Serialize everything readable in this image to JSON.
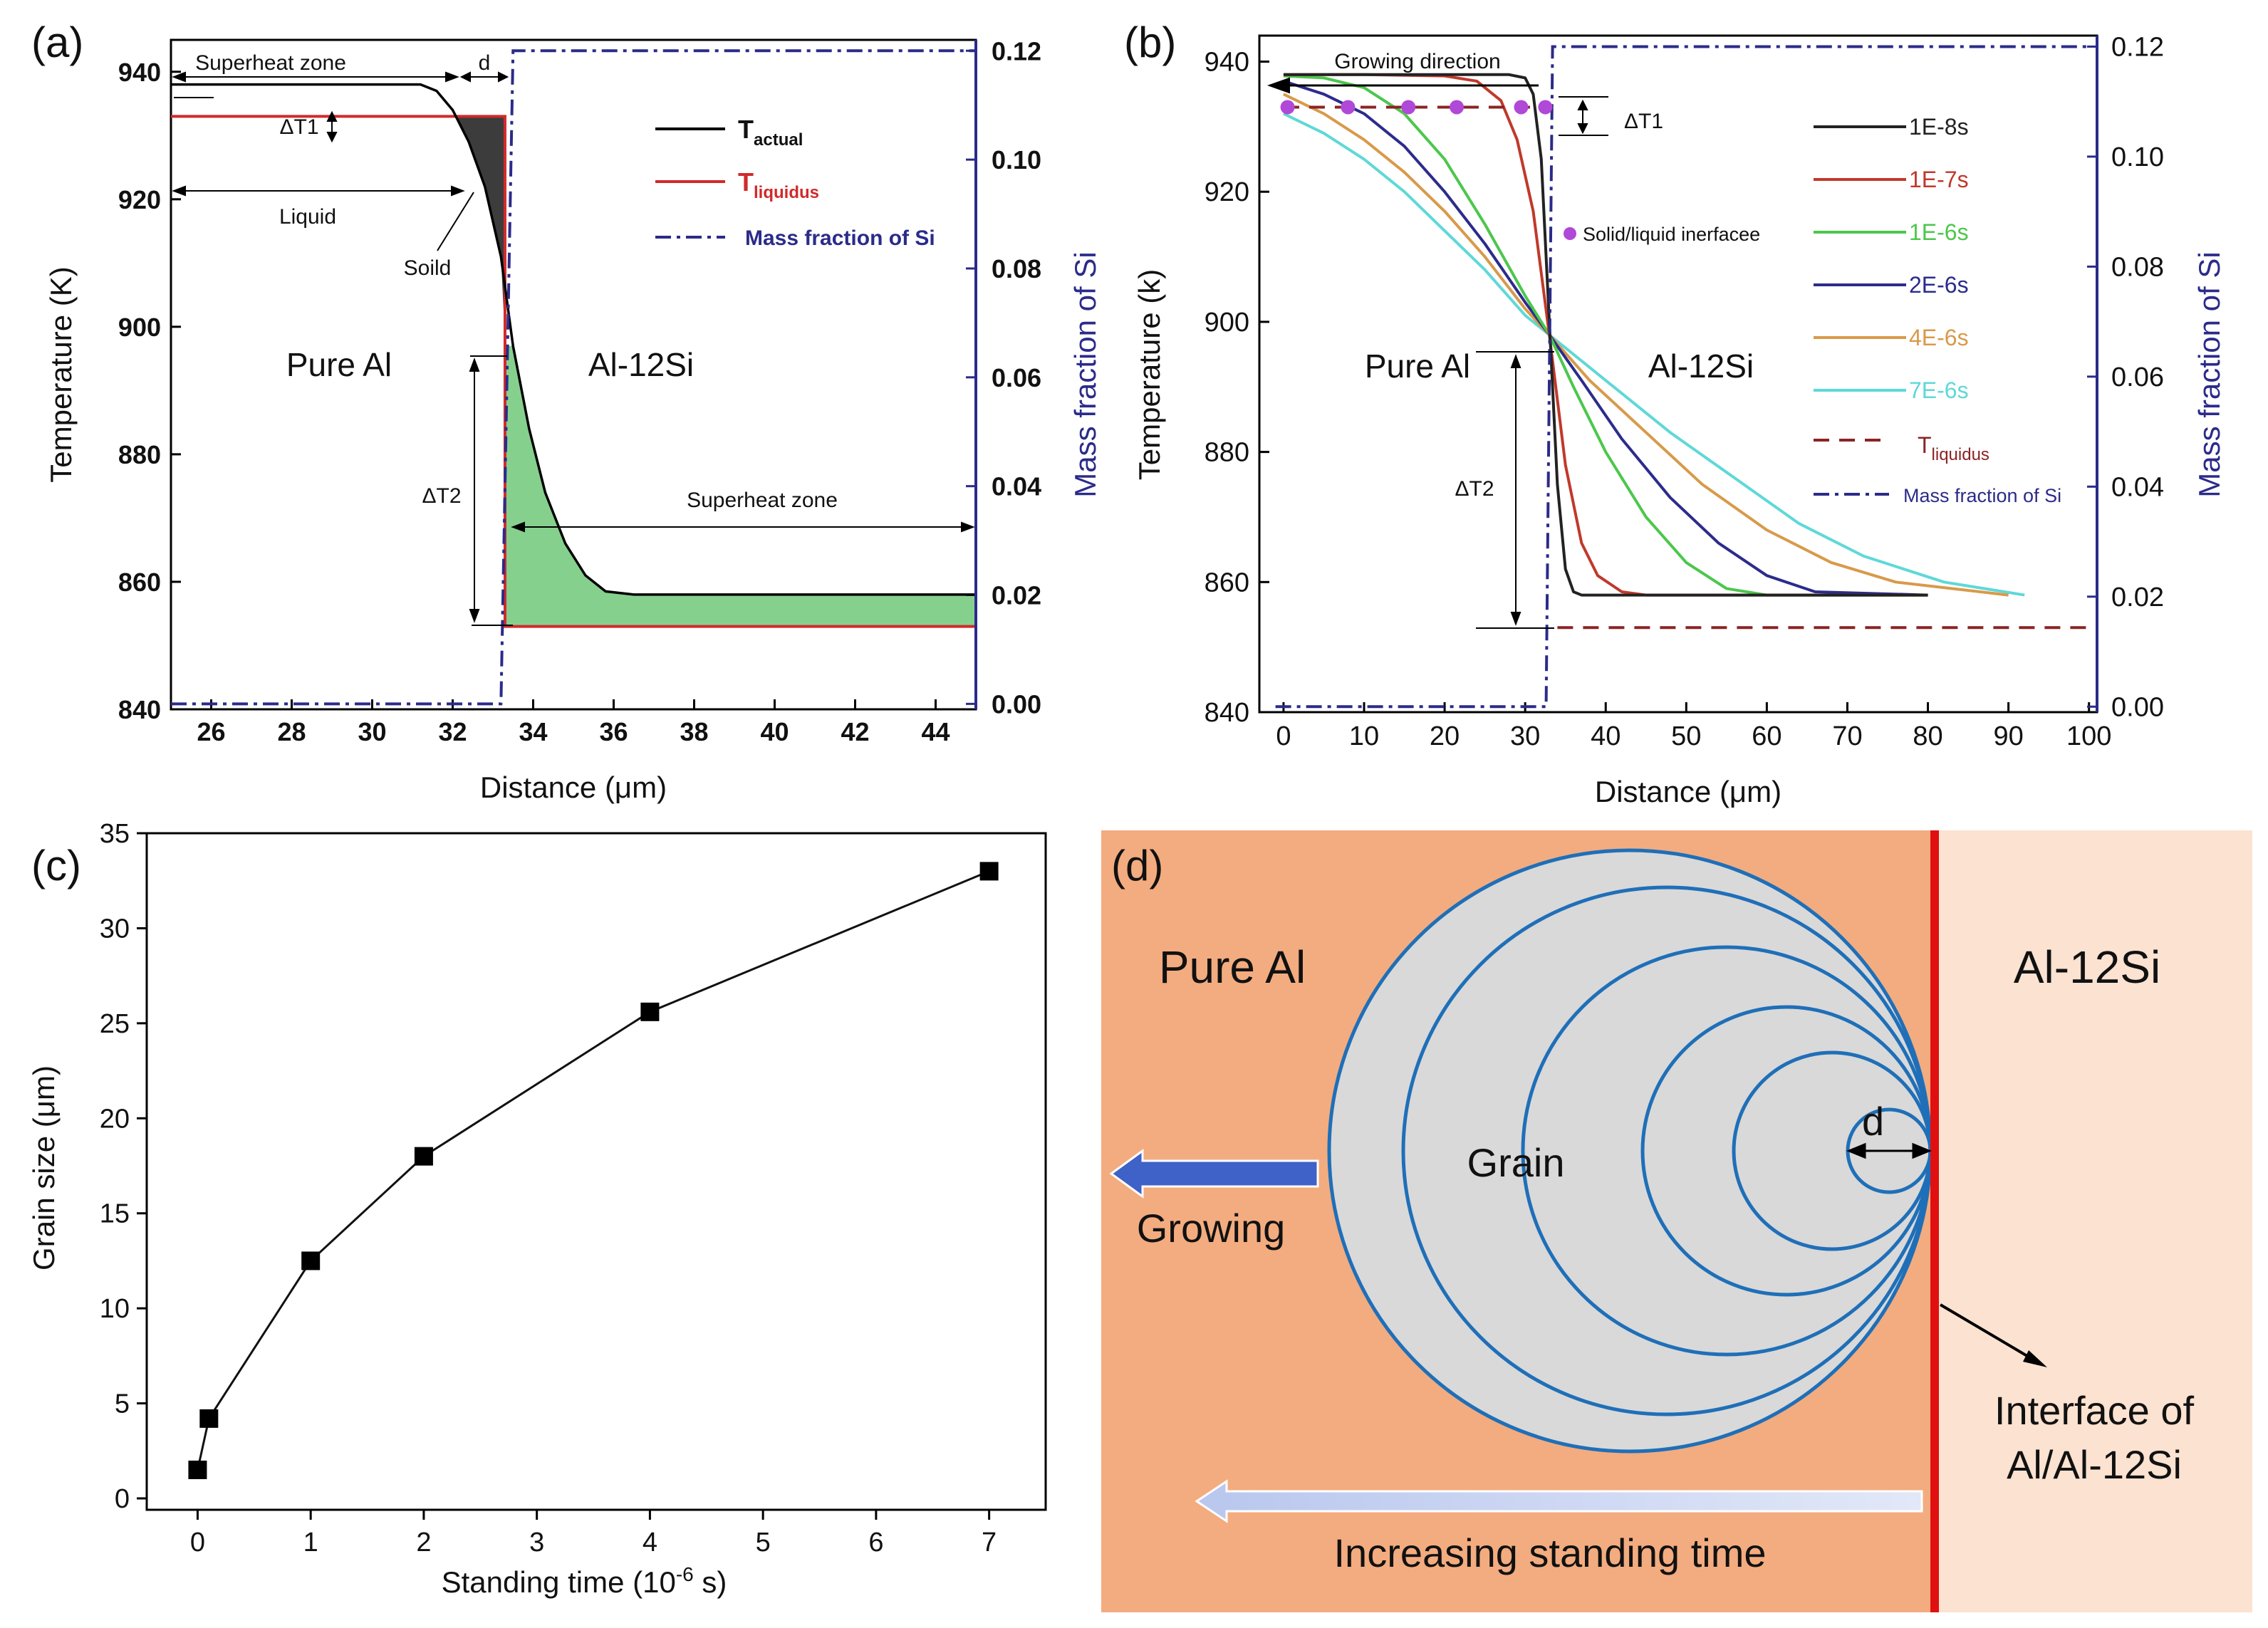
{
  "chart_data": [
    {
      "panel": "(a)",
      "type": "line",
      "xlabel": "Distance (μm)",
      "ylabel": "Temperature (K)",
      "ylabel_right": "Mass fraction of Si",
      "xlim": [
        25,
        45
      ],
      "ylim": [
        840,
        945
      ],
      "ylim_right": [
        -0.001,
        0.122
      ],
      "x_ticks": [
        26,
        28,
        30,
        32,
        34,
        36,
        38,
        40,
        42,
        44
      ],
      "y_ticks": [
        840,
        860,
        880,
        900,
        920,
        940
      ],
      "y_right_ticks": [
        "0.00",
        "0.02",
        "0.04",
        "0.06",
        "0.08",
        "0.10",
        "0.12"
      ],
      "series": [
        {
          "name": "T_actual",
          "color": "#000000",
          "x": [
            25,
            30,
            31.2,
            31.6,
            32.0,
            32.4,
            32.8,
            33.2,
            33.5,
            33.9,
            34.3,
            34.8,
            35.3,
            35.8,
            36.5,
            45
          ],
          "y": [
            938,
            938,
            938,
            937,
            934,
            929,
            922,
            911,
            897,
            884,
            874,
            866,
            861,
            858.5,
            858,
            858
          ]
        },
        {
          "name": "T_liquidus",
          "color": "#d12a2a",
          "x": [
            25,
            33.3,
            33.3,
            45
          ],
          "y": [
            933,
            933,
            853,
            853
          ]
        },
        {
          "name": "Mass fraction of Si",
          "color": "#2b2b8a",
          "axis": "right",
          "x": [
            25,
            33.2,
            33.5,
            45
          ],
          "y": [
            0,
            0,
            0.12,
            0.12
          ]
        }
      ],
      "legend": {
        "t_actual_main": "T",
        "t_actual_sub": "actual",
        "t_liquidus_main": "T",
        "t_liquidus_sub": "liquidus",
        "si": "Mass fraction of Si"
      },
      "annotations": {
        "superheat_top": "Superheat zone",
        "d": "d",
        "dt1": "ΔT1",
        "liquid": "Liquid",
        "solid": "Soild",
        "pure_al": "Pure Al",
        "al12si": "Al-12Si",
        "dt2": "ΔT2",
        "superheat_bottom": "Superheat zone"
      }
    },
    {
      "panel": "(b)",
      "type": "line",
      "xlabel": "Distance (μm)",
      "ylabel": "Temperature (k)",
      "ylabel_right": "Mass fraction of Si",
      "xlim": [
        -3,
        101
      ],
      "ylim": [
        840,
        944
      ],
      "ylim_right": [
        -0.001,
        0.122
      ],
      "x_ticks": [
        0,
        10,
        20,
        30,
        40,
        50,
        60,
        70,
        80,
        90,
        100
      ],
      "y_ticks": [
        840,
        860,
        880,
        900,
        920,
        940
      ],
      "y_right_ticks": [
        "0.00",
        "0.02",
        "0.04",
        "0.06",
        "0.08",
        "0.10",
        "0.12"
      ],
      "series": [
        {
          "name": "1E-8s",
          "color": "#222222",
          "x": [
            0,
            10,
            20,
            28,
            30,
            31,
            32,
            33,
            34,
            35,
            36,
            37,
            40,
            60,
            80
          ],
          "y": [
            938,
            938,
            938,
            938,
            937.5,
            935,
            925,
            900,
            875,
            862,
            858.5,
            858,
            858,
            858,
            858
          ]
        },
        {
          "name": "1E-7s",
          "color": "#c0392b",
          "x": [
            0,
            10,
            20,
            24,
            27,
            29,
            31,
            33,
            35,
            37,
            39,
            42,
            45,
            60,
            80
          ],
          "y": [
            938,
            938,
            937.8,
            937,
            934,
            928,
            917,
            898,
            878,
            866,
            861,
            858.5,
            858,
            858,
            858
          ]
        },
        {
          "name": "1E-6s",
          "color": "#4cc74c",
          "x": [
            0,
            5,
            10,
            15,
            20,
            25,
            30,
            33,
            36,
            40,
            45,
            50,
            55,
            60,
            80
          ],
          "y": [
            937.8,
            937.5,
            936,
            932,
            925,
            915,
            904,
            898,
            890,
            880,
            870,
            863,
            859,
            858,
            858
          ]
        },
        {
          "name": "2E-6s",
          "color": "#2c2c8c",
          "x": [
            0,
            5,
            10,
            15,
            20,
            25,
            30,
            33,
            37,
            42,
            48,
            54,
            60,
            66,
            80
          ],
          "y": [
            937,
            935,
            932,
            927,
            920,
            912,
            903,
            898,
            891,
            882,
            873,
            866,
            861,
            858.5,
            858
          ]
        },
        {
          "name": "4E-6s",
          "color": "#d89a4a",
          "x": [
            0,
            5,
            10,
            15,
            20,
            25,
            30,
            33,
            38,
            45,
            52,
            60,
            68,
            76,
            90
          ],
          "y": [
            935,
            932,
            928,
            923,
            917,
            910,
            902,
            898,
            891,
            883,
            875,
            868,
            863,
            860,
            858
          ]
        },
        {
          "name": "7E-6s",
          "color": "#5fd8d8",
          "x": [
            0,
            5,
            10,
            15,
            20,
            25,
            30,
            33,
            40,
            48,
            56,
            64,
            72,
            82,
            92
          ],
          "y": [
            932,
            929,
            925,
            920,
            914,
            908,
            901,
            898,
            891,
            883,
            876,
            869,
            864,
            860,
            858
          ]
        },
        {
          "name": "T_liquidus",
          "color": "#8b2323",
          "x": [
            34,
            100
          ],
          "y": [
            853,
            853
          ]
        },
        {
          "name": "T_liquidus_left",
          "color": "#8b2323",
          "x": [
            0,
            32
          ],
          "y": [
            933,
            933
          ]
        },
        {
          "name": "Mass fraction of Si",
          "color": "#2b2b8a",
          "axis": "right",
          "x": [
            -1,
            32.6,
            33.4,
            100
          ],
          "y": [
            0,
            0,
            0.12,
            0.12
          ]
        }
      ],
      "interface_points": {
        "x": [
          0.5,
          8,
          15.5,
          21.5,
          29.5,
          32.5
        ],
        "y": [
          933,
          933,
          933,
          933,
          933,
          933
        ]
      },
      "legend": [
        "1E-8s",
        "1E-7s",
        "1E-6s",
        "2E-6s",
        "4E-6s",
        "7E-6s"
      ],
      "legend_liquidus_main": "T",
      "legend_liquidus_sub": "liquidus",
      "legend_si": "Mass fraction of Si",
      "annotations": {
        "growing": "Growing direction",
        "dt1": "ΔT1",
        "interface": "Solid/liquid inerfacee",
        "pure_al": "Pure Al",
        "al12si": "Al-12Si",
        "dt2": "ΔT2"
      }
    },
    {
      "panel": "(c)",
      "type": "line",
      "xlabel_main": "Standing time (10",
      "xlabel_sup": "-6",
      "xlabel_tail": " s)",
      "ylabel": "Grain size (μm)",
      "xlim": [
        -0.45,
        7.5
      ],
      "ylim": [
        -0.6,
        35
      ],
      "x_ticks": [
        0,
        1,
        2,
        3,
        4,
        5,
        6,
        7
      ],
      "y_ticks": [
        0,
        5,
        10,
        15,
        20,
        25,
        30,
        35
      ],
      "x": [
        0,
        0.1,
        1,
        2,
        4,
        7
      ],
      "y": [
        1.5,
        4.2,
        12.5,
        18,
        25.6,
        33
      ]
    }
  ],
  "diagram": {
    "panel": "(d)",
    "pure_al": "Pure Al",
    "al12si": "Al-12Si",
    "grain": "Grain",
    "d": "d",
    "growing": "Growing",
    "interface_line1": "Interface of",
    "interface_line2": "Al/Al-12Si",
    "increasing": "Increasing standing time",
    "colors": {
      "left": "#f3ac7f",
      "right": "#fbe2d1",
      "interface": "#e01010",
      "circle": "#1f6fb8",
      "grain_fill": "#d9d9d9"
    }
  }
}
